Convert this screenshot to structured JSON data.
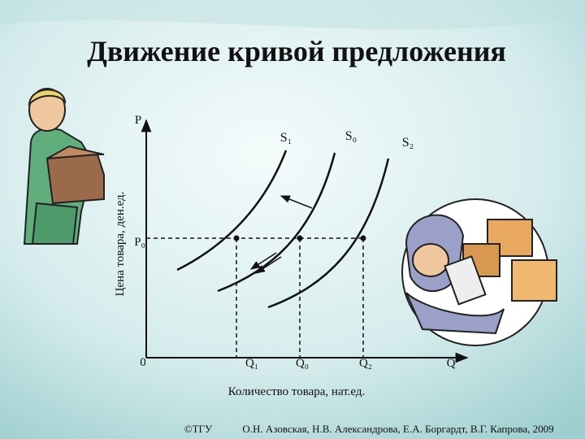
{
  "header": {
    "title": "Движение кривой предложения"
  },
  "diagram": {
    "y_axis": {
      "label": "P",
      "title": "Цена товара, ден.ед.",
      "price_label": "P₀"
    },
    "x_axis": {
      "origin": "0",
      "label": "Q",
      "title": "Количество товара, нат.ед.",
      "quantity_labels": [
        "Q₁",
        "Q₀",
        "Q₂"
      ]
    },
    "curves": [
      "S₁",
      "S₀",
      "S₂"
    ]
  },
  "footer": {
    "copyright": "©ТГУ",
    "authors": "О.Н. Азовская, Н.В. Александрова, Е.А. Боргардт, В.Г. Капрова, 2009"
  }
}
